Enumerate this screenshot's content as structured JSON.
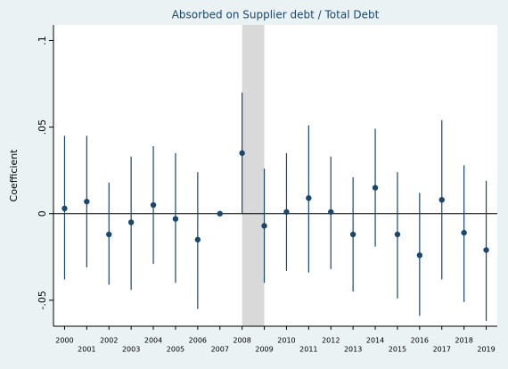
{
  "chart_data": {
    "type": "coefplot",
    "title": "Absorbed on Supplier debt / Total Debt",
    "y_label": "Coefficient",
    "categories": [
      "2000",
      "2001",
      "2002",
      "2003",
      "2004",
      "2005",
      "2006",
      "2007",
      "2008",
      "2009",
      "2010",
      "2011",
      "2012",
      "2013",
      "2014",
      "2015",
      "2016",
      "2017",
      "2018",
      "2019"
    ],
    "series": [
      {
        "name": "Coefficient",
        "color": "#1a476f",
        "values": [
          0.003,
          0.007,
          -0.012,
          -0.005,
          0.005,
          -0.003,
          -0.015,
          0,
          0.035,
          -0.007,
          0.001,
          0.009,
          0.001,
          -0.012,
          0.015,
          -0.012,
          -0.024,
          0.008,
          -0.011,
          -0.021
        ],
        "lower": [
          -0.038,
          -0.031,
          -0.041,
          -0.044,
          -0.029,
          -0.04,
          -0.055,
          0,
          0,
          -0.04,
          -0.033,
          -0.034,
          -0.032,
          -0.045,
          -0.019,
          -0.049,
          -0.059,
          -0.038,
          -0.051,
          -0.062
        ],
        "upper": [
          0.045,
          0.045,
          0.018,
          0.033,
          0.039,
          0.035,
          0.024,
          0,
          0.07,
          0.026,
          0.035,
          0.051,
          0.033,
          0.021,
          0.049,
          0.024,
          0.012,
          0.054,
          0.028,
          0.019
        ]
      }
    ],
    "highlight": [
      "2008",
      "2009"
    ],
    "highlight_color": "#d9d9d9",
    "ylim": [
      -0.065,
      0.109
    ],
    "yticks": [
      {
        "value": -0.05,
        "label": "-.05"
      },
      0,
      {
        "value": 0.05,
        "label": ".05"
      },
      {
        "value": 0.1,
        "label": ".1"
      }
    ],
    "grid": false
  }
}
